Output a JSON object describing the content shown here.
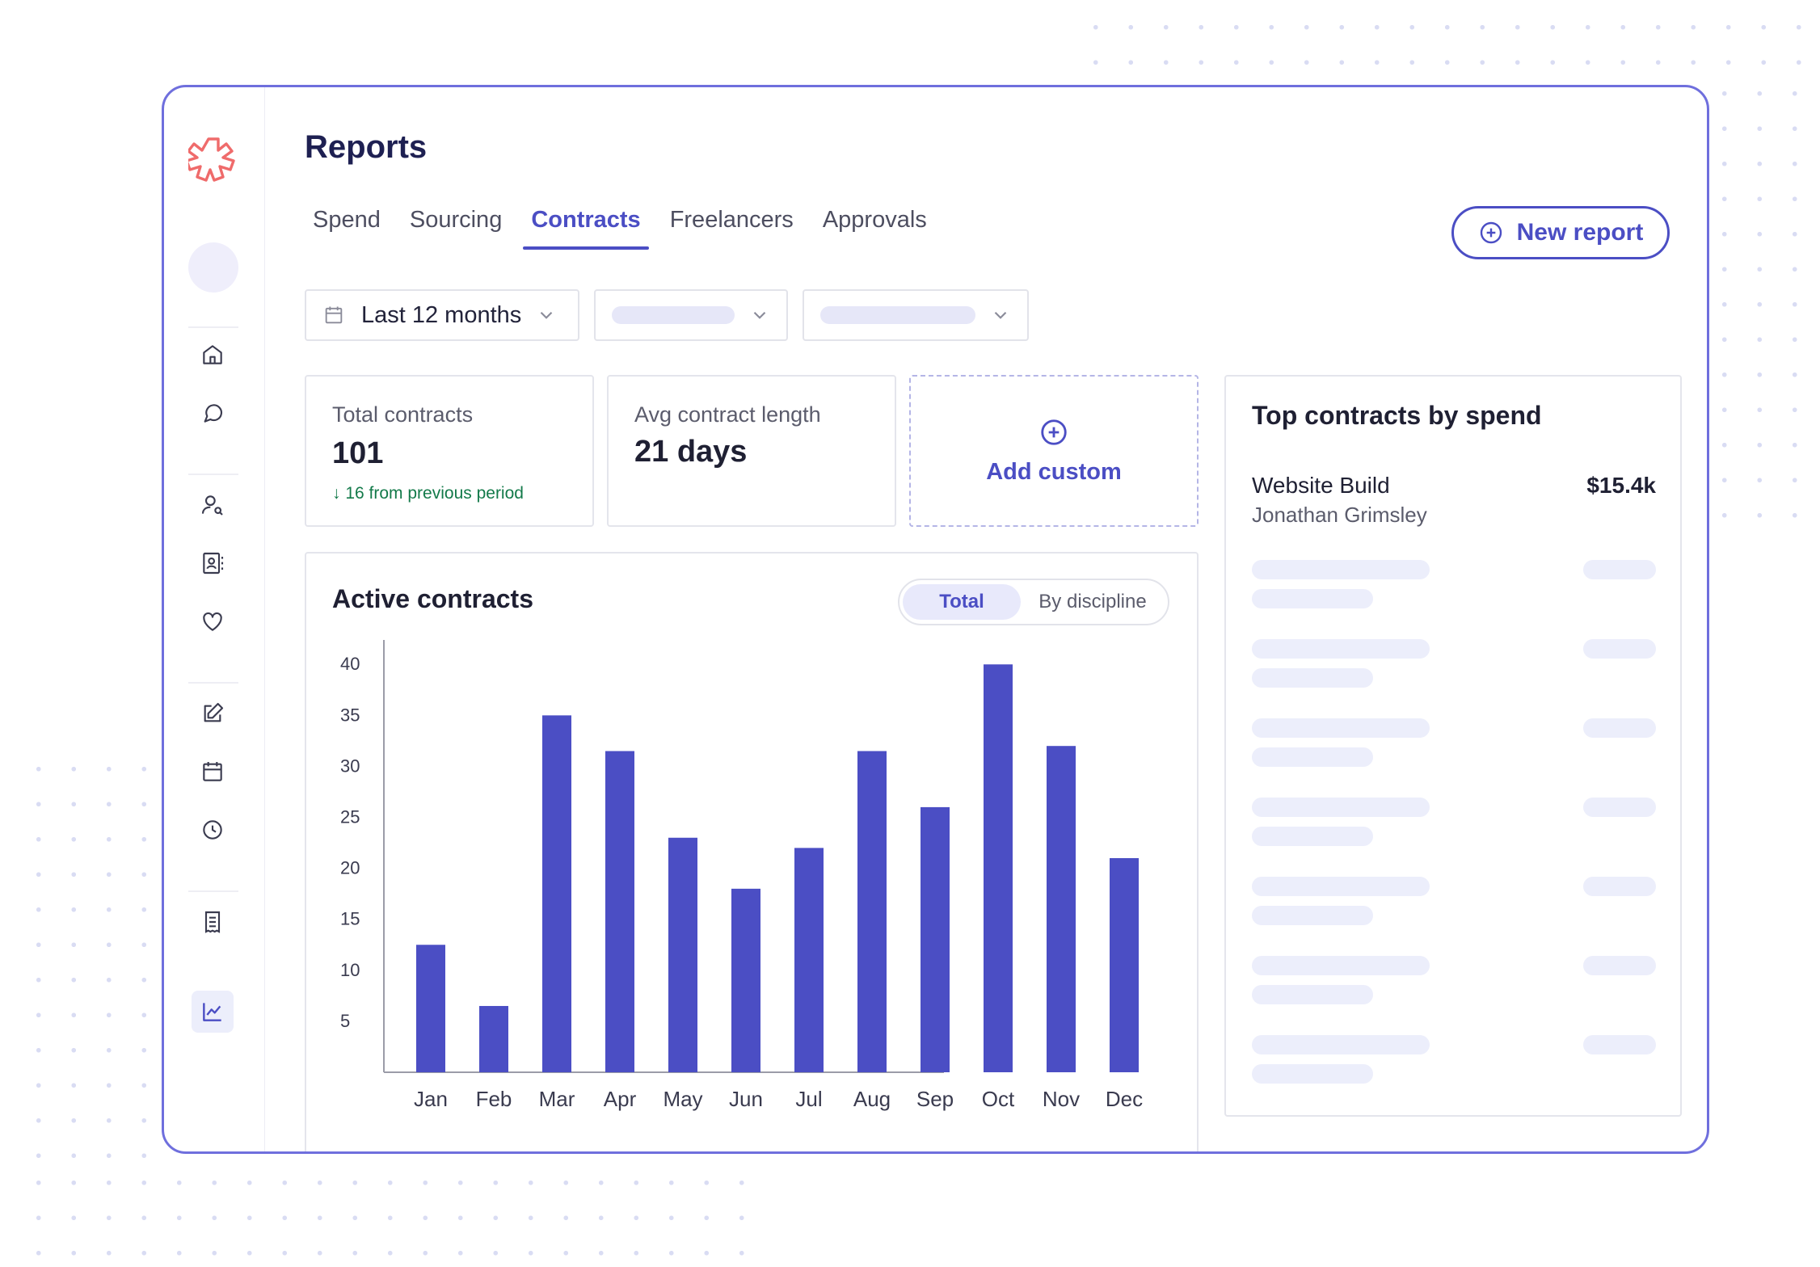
{
  "header": {
    "title": "Reports"
  },
  "tabs": [
    {
      "label": "Spend"
    },
    {
      "label": "Sourcing"
    },
    {
      "label": "Contracts",
      "active": true
    },
    {
      "label": "Freelancers"
    },
    {
      "label": "Approvals"
    }
  ],
  "toolbar": {
    "new_report_label": "New report"
  },
  "filters": {
    "date_range": "Last 12 months"
  },
  "stats": {
    "total_contracts": {
      "label": "Total contracts",
      "value": "101",
      "delta": "16 from previous period"
    },
    "avg_length": {
      "label": "Avg contract length",
      "value": "21 days"
    },
    "add_custom": "Add custom"
  },
  "active_contracts": {
    "title": "Active contracts",
    "toggle": {
      "on": "Total",
      "off": "By discipline"
    }
  },
  "chart_data": {
    "type": "bar",
    "categories": [
      "Jan",
      "Feb",
      "Mar",
      "Apr",
      "May",
      "Jun",
      "Jul",
      "Aug",
      "Sep",
      "Oct",
      "Nov",
      "Dec"
    ],
    "values": [
      12.5,
      6.5,
      35,
      31.5,
      23,
      18,
      22,
      31.5,
      26,
      40,
      32,
      21
    ],
    "yticks": [
      5,
      10,
      15,
      20,
      25,
      30,
      35,
      40
    ],
    "ylim": [
      0,
      42
    ],
    "grid": false,
    "color": "#4b4ec4"
  },
  "top_contracts": {
    "title": "Top contracts by spend",
    "items": [
      {
        "name": "Website Build",
        "owner": "Jonathan Grimsley",
        "amount": "$15.4k"
      }
    ]
  },
  "icons": {
    "sidebar": [
      "home-icon",
      "chat-icon",
      "user-search-icon",
      "contacts-icon",
      "heart-icon",
      "edit-icon",
      "calendar-icon",
      "clock-icon",
      "receipt-icon",
      "chart-icon"
    ],
    "accent": "#4b4ec4",
    "logo": "#ef6b6b"
  }
}
